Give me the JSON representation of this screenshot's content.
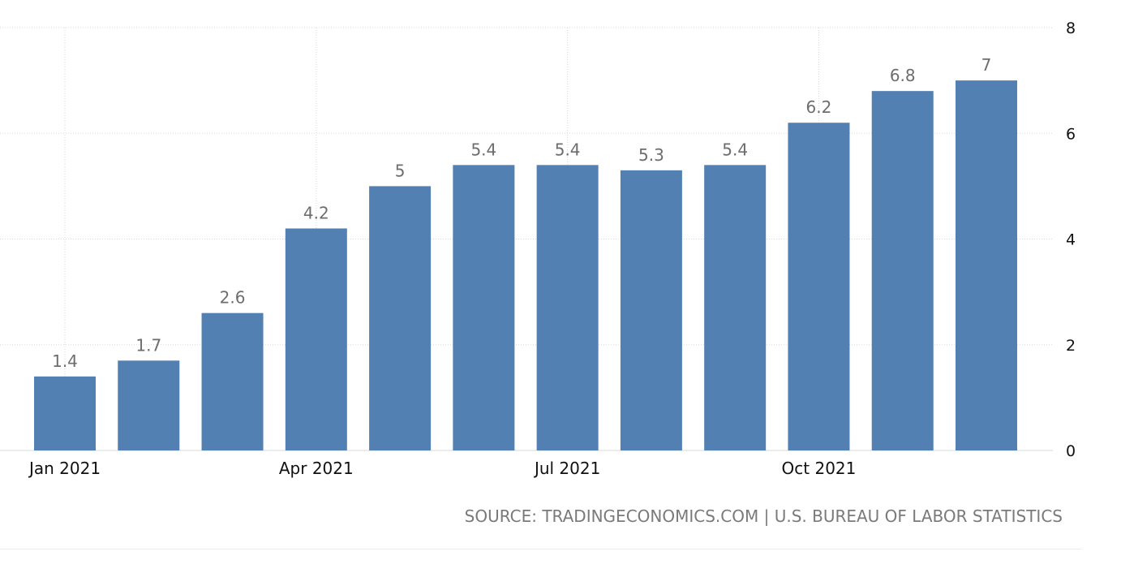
{
  "chart_data": {
    "type": "bar",
    "categories": [
      "Jan 2021",
      "Feb 2021",
      "Mar 2021",
      "Apr 2021",
      "May 2021",
      "Jun 2021",
      "Jul 2021",
      "Aug 2021",
      "Sep 2021",
      "Oct 2021",
      "Nov 2021",
      "Dec 2021"
    ],
    "values": [
      1.4,
      1.7,
      2.6,
      4.2,
      5,
      5.4,
      5.4,
      5.3,
      5.4,
      6.2,
      6.8,
      7
    ],
    "data_labels": [
      "1.4",
      "1.7",
      "2.6",
      "4.2",
      "5",
      "5.4",
      "5.4",
      "5.3",
      "5.4",
      "6.2",
      "6.8",
      "7"
    ],
    "x_tick_labels": [
      {
        "category": "Jan 2021",
        "label": "Jan 2021"
      },
      {
        "category": "Apr 2021",
        "label": "Apr 2021"
      },
      {
        "category": "Jul 2021",
        "label": "Jul 2021"
      },
      {
        "category": "Oct 2021",
        "label": "Oct 2021"
      }
    ],
    "y_ticks": [
      0,
      2,
      4,
      6,
      8
    ],
    "ylim": [
      0,
      8
    ],
    "y_axis_position": "right",
    "grid": true,
    "bar_color": "#5280b2",
    "title": "",
    "xlabel": "",
    "ylabel": ""
  },
  "source": "SOURCE: TRADINGECONOMICS.COM | U.S. BUREAU OF LABOR STATISTICS"
}
